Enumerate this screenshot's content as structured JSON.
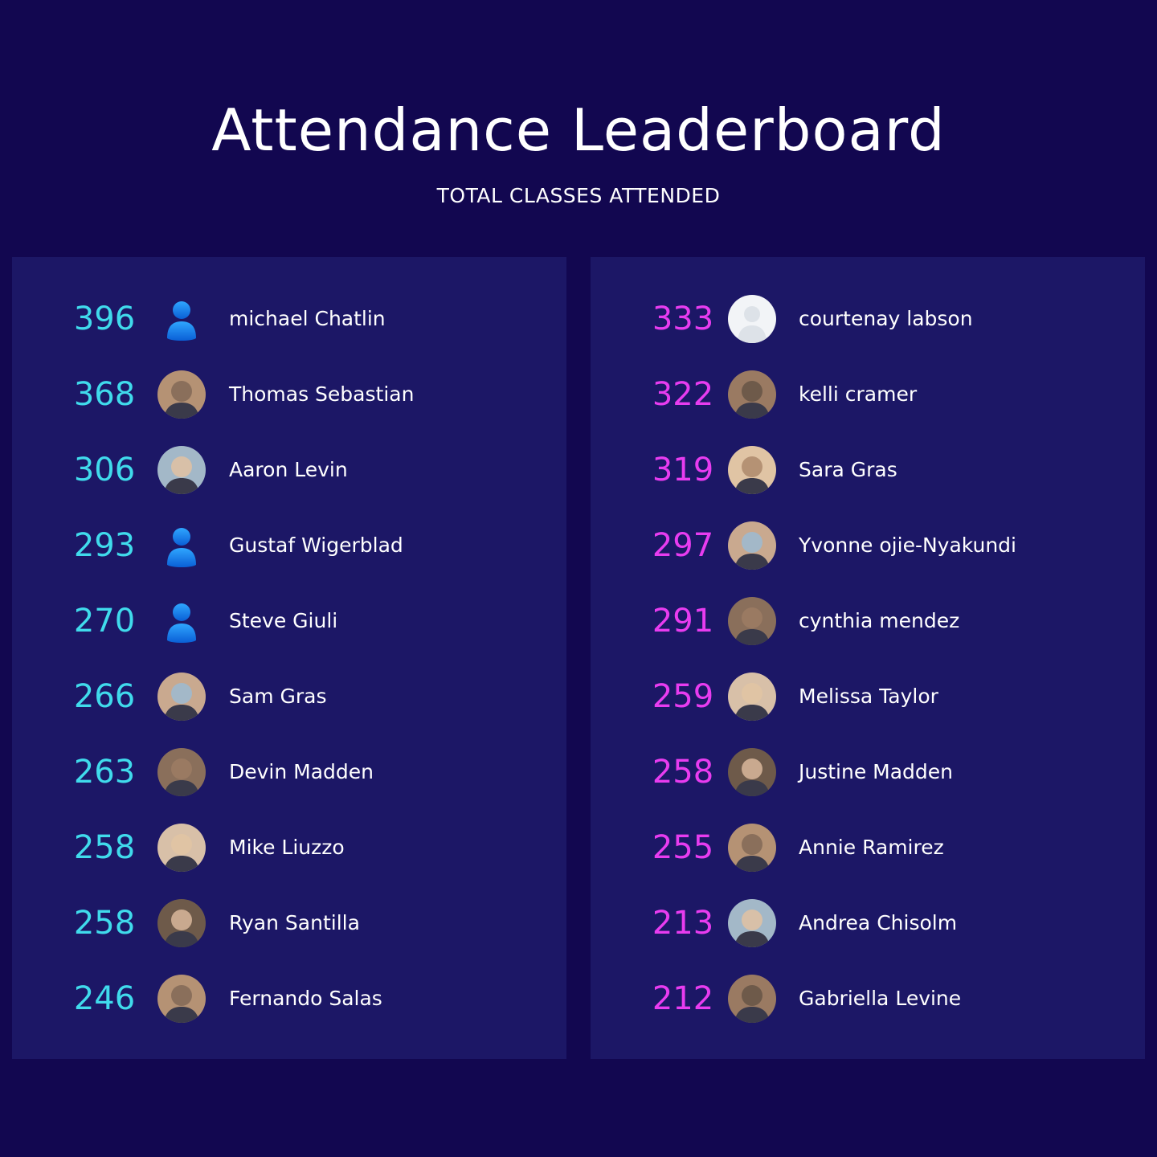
{
  "header": {
    "title": "Attendance Leaderboard",
    "subtitle": "TOTAL CLASSES ATTENDED"
  },
  "colors": {
    "background": "#120750",
    "panel": "#1c1766",
    "left_score": "#40dbec",
    "right_score": "#e83cf0"
  },
  "left_list": [
    {
      "score": "396",
      "name": "michael Chatlin",
      "avatar": "default-user-icon"
    },
    {
      "score": "368",
      "name": "Thomas Sebastian",
      "avatar": "photo-avatar"
    },
    {
      "score": "306",
      "name": "Aaron Levin",
      "avatar": "photo-avatar"
    },
    {
      "score": "293",
      "name": "Gustaf Wigerblad",
      "avatar": "default-user-icon"
    },
    {
      "score": "270",
      "name": "Steve Giuli",
      "avatar": "default-user-icon"
    },
    {
      "score": "266",
      "name": "Sam Gras",
      "avatar": "photo-avatar"
    },
    {
      "score": "263",
      "name": "Devin Madden",
      "avatar": "photo-avatar"
    },
    {
      "score": "258",
      "name": "Mike Liuzzo",
      "avatar": "photo-avatar"
    },
    {
      "score": "258",
      "name": "Ryan Santilla",
      "avatar": "photo-avatar"
    },
    {
      "score": "246",
      "name": "Fernando Salas",
      "avatar": "photo-avatar"
    }
  ],
  "right_list": [
    {
      "score": "333",
      "name": "courtenay labson",
      "avatar": "blank-silhouette-icon"
    },
    {
      "score": "322",
      "name": "kelli cramer",
      "avatar": "photo-avatar"
    },
    {
      "score": "319",
      "name": "Sara Gras",
      "avatar": "photo-avatar"
    },
    {
      "score": "297",
      "name": "Yvonne ojie-Nyakundi",
      "avatar": "photo-avatar"
    },
    {
      "score": "291",
      "name": "cynthia mendez",
      "avatar": "photo-avatar"
    },
    {
      "score": "259",
      "name": "Melissa Taylor",
      "avatar": "photo-avatar"
    },
    {
      "score": "258",
      "name": "Justine Madden",
      "avatar": "photo-avatar"
    },
    {
      "score": "255",
      "name": "Annie Ramirez",
      "avatar": "photo-avatar"
    },
    {
      "score": "213",
      "name": "Andrea Chisolm",
      "avatar": "photo-avatar"
    },
    {
      "score": "212",
      "name": "Gabriella Levine",
      "avatar": "photo-avatar"
    }
  ]
}
